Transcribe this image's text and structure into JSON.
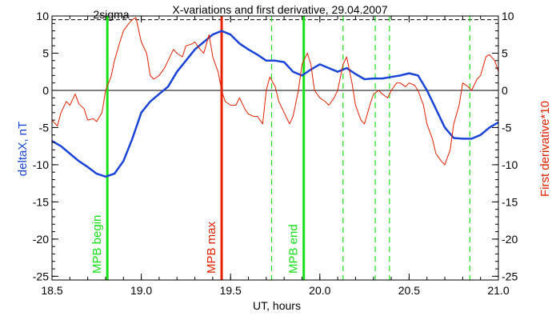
{
  "chart_data": {
    "type": "line",
    "title": "X-variations and first derivative, 29.04.2007",
    "xlabel": "UT, hours",
    "ylabel_left": "deltaX, nT",
    "ylabel_right": "First derivative*10",
    "xlim": [
      18.5,
      21.0
    ],
    "ylim": [
      -25.5,
      10
    ],
    "x_ticks": [
      18.5,
      19.0,
      19.5,
      20.0,
      20.5,
      21.0
    ],
    "x_tick_labels": [
      "18.5",
      "19.0",
      "19.5",
      "20.0",
      "20.5",
      "21.0"
    ],
    "y_ticks": [
      10,
      5,
      0,
      -5,
      -10,
      -15,
      -20,
      -25
    ],
    "y_tick_labels": [
      "10",
      "5",
      "0",
      "-5",
      "-10",
      "-15",
      "-20",
      "-25"
    ],
    "sigma_level": 9.5,
    "sigma_label": "2sigma",
    "zero_line": 0,
    "colors": {
      "deltax": "#1a44d8",
      "derivative": "#e02000",
      "event_green": "#18e018",
      "event_red": "#e62000",
      "axis": "#000000"
    },
    "series": [
      {
        "name": "deltaX, nT",
        "color": "#1a44d8",
        "x": [
          18.5,
          18.55,
          18.6,
          18.65,
          18.7,
          18.75,
          18.8,
          18.85,
          18.9,
          18.95,
          19.0,
          19.05,
          19.1,
          19.15,
          19.2,
          19.25,
          19.3,
          19.35,
          19.4,
          19.45,
          19.5,
          19.55,
          19.6,
          19.65,
          19.7,
          19.75,
          19.8,
          19.85,
          19.9,
          19.95,
          20.0,
          20.05,
          20.1,
          20.15,
          20.2,
          20.25,
          20.3,
          20.35,
          20.4,
          20.45,
          20.5,
          20.55,
          20.6,
          20.65,
          20.7,
          20.75,
          20.8,
          20.85,
          20.9,
          20.95,
          21.0
        ],
        "values": [
          -6.8,
          -7.5,
          -8.5,
          -9.5,
          -10.3,
          -11.2,
          -11.6,
          -11.2,
          -9.5,
          -6.5,
          -3.0,
          -1.5,
          -0.5,
          0.5,
          2.5,
          4.0,
          5.5,
          6.5,
          7.5,
          8.0,
          7.5,
          6.3,
          5.5,
          4.8,
          4.0,
          4.0,
          3.8,
          2.5,
          2.0,
          2.8,
          3.5,
          3.0,
          2.5,
          3.0,
          2.2,
          1.5,
          1.6,
          1.6,
          1.8,
          2.0,
          2.3,
          2.0,
          0.0,
          -2.5,
          -5.0,
          -6.4,
          -6.5,
          -6.5,
          -6.0,
          -5.0,
          -4.3
        ]
      },
      {
        "name": "First derivative*10",
        "color": "#e02000",
        "x": [
          18.5,
          18.53,
          18.55,
          18.58,
          18.6,
          18.63,
          18.65,
          18.68,
          18.7,
          18.73,
          18.75,
          18.78,
          18.8,
          18.83,
          18.85,
          18.88,
          18.9,
          18.93,
          18.95,
          18.97,
          19.0,
          19.03,
          19.05,
          19.07,
          19.1,
          19.13,
          19.15,
          19.18,
          19.2,
          19.23,
          19.25,
          19.28,
          19.3,
          19.33,
          19.35,
          19.38,
          19.4,
          19.43,
          19.45,
          19.47,
          19.5,
          19.53,
          19.55,
          19.58,
          19.6,
          19.63,
          19.65,
          19.68,
          19.7,
          19.72,
          19.75,
          19.77,
          19.8,
          19.83,
          19.85,
          19.88,
          19.9,
          19.93,
          19.95,
          19.97,
          20.0,
          20.03,
          20.05,
          20.08,
          20.1,
          20.13,
          20.15,
          20.18,
          20.2,
          20.23,
          20.25,
          20.28,
          20.3,
          20.33,
          20.35,
          20.38,
          20.4,
          20.43,
          20.45,
          20.48,
          20.5,
          20.53,
          20.55,
          20.58,
          20.6,
          20.63,
          20.65,
          20.68,
          20.7,
          20.73,
          20.75,
          20.78,
          20.8,
          20.83,
          20.85,
          20.88,
          20.9,
          20.93,
          20.95,
          20.98,
          21.0
        ],
        "values": [
          -4.0,
          -4.8,
          -3.0,
          -1.5,
          -2.0,
          -0.5,
          -1.8,
          -2.5,
          -4.0,
          -3.8,
          -4.2,
          -3.0,
          0.0,
          1.8,
          4.0,
          6.5,
          8.0,
          9.0,
          9.5,
          9.8,
          6.5,
          5.0,
          2.0,
          1.5,
          2.0,
          3.0,
          4.0,
          5.5,
          5.0,
          4.5,
          6.0,
          6.2,
          6.5,
          5.5,
          5.0,
          7.5,
          4.5,
          2.5,
          0.0,
          -1.5,
          -2.0,
          -2.0,
          -1.0,
          -2.5,
          -3.2,
          -3.5,
          -3.5,
          -4.5,
          0.0,
          1.8,
          0.5,
          -1.5,
          -3.0,
          -4.5,
          -3.5,
          0.0,
          3.5,
          5.0,
          3.5,
          0.0,
          -1.0,
          -1.5,
          -2.0,
          -1.0,
          0.0,
          3.5,
          4.5,
          1.0,
          -2.0,
          -4.0,
          -4.5,
          -2.0,
          -0.5,
          0.0,
          -0.5,
          -1.0,
          0.0,
          1.0,
          1.0,
          0.5,
          1.0,
          0.7,
          0.0,
          -2.0,
          -4.5,
          -6.5,
          -8.5,
          -9.5,
          -10.0,
          -8.0,
          -4.5,
          -2.0,
          1.0,
          0.5,
          0.0,
          1.5,
          2.0,
          4.5,
          4.8,
          4.0,
          2.5
        ]
      }
    ],
    "events": [
      {
        "x": 18.81,
        "label": "MPB begin",
        "color": "#18e018",
        "style": "solid"
      },
      {
        "x": 19.45,
        "label": "MPB max",
        "color": "#e62000",
        "style": "solid"
      },
      {
        "x": 19.91,
        "label": "MPB end",
        "color": "#18e018",
        "style": "solid"
      },
      {
        "x": 19.73,
        "label": "",
        "color": "#18e018",
        "style": "dashed"
      },
      {
        "x": 20.13,
        "label": "",
        "color": "#18e018",
        "style": "dashed"
      },
      {
        "x": 20.31,
        "label": "",
        "color": "#18e018",
        "style": "dashed"
      },
      {
        "x": 20.39,
        "label": "",
        "color": "#18e018",
        "style": "dashed"
      },
      {
        "x": 20.84,
        "label": "",
        "color": "#18e018",
        "style": "dashed"
      }
    ]
  }
}
